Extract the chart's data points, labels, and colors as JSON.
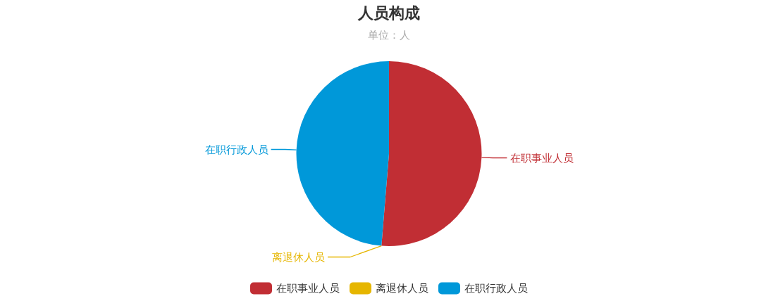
{
  "chart_data": {
    "type": "pie",
    "title": "人员构成",
    "subtitle": "单位：人",
    "categories": [
      "在职事业人员",
      "离退休人员",
      "在职行政人员"
    ],
    "values": [
      51.3,
      0,
      48.7
    ],
    "colors": [
      "#c12e34",
      "#e6b600",
      "#0098d9"
    ],
    "legend": "bottom"
  }
}
